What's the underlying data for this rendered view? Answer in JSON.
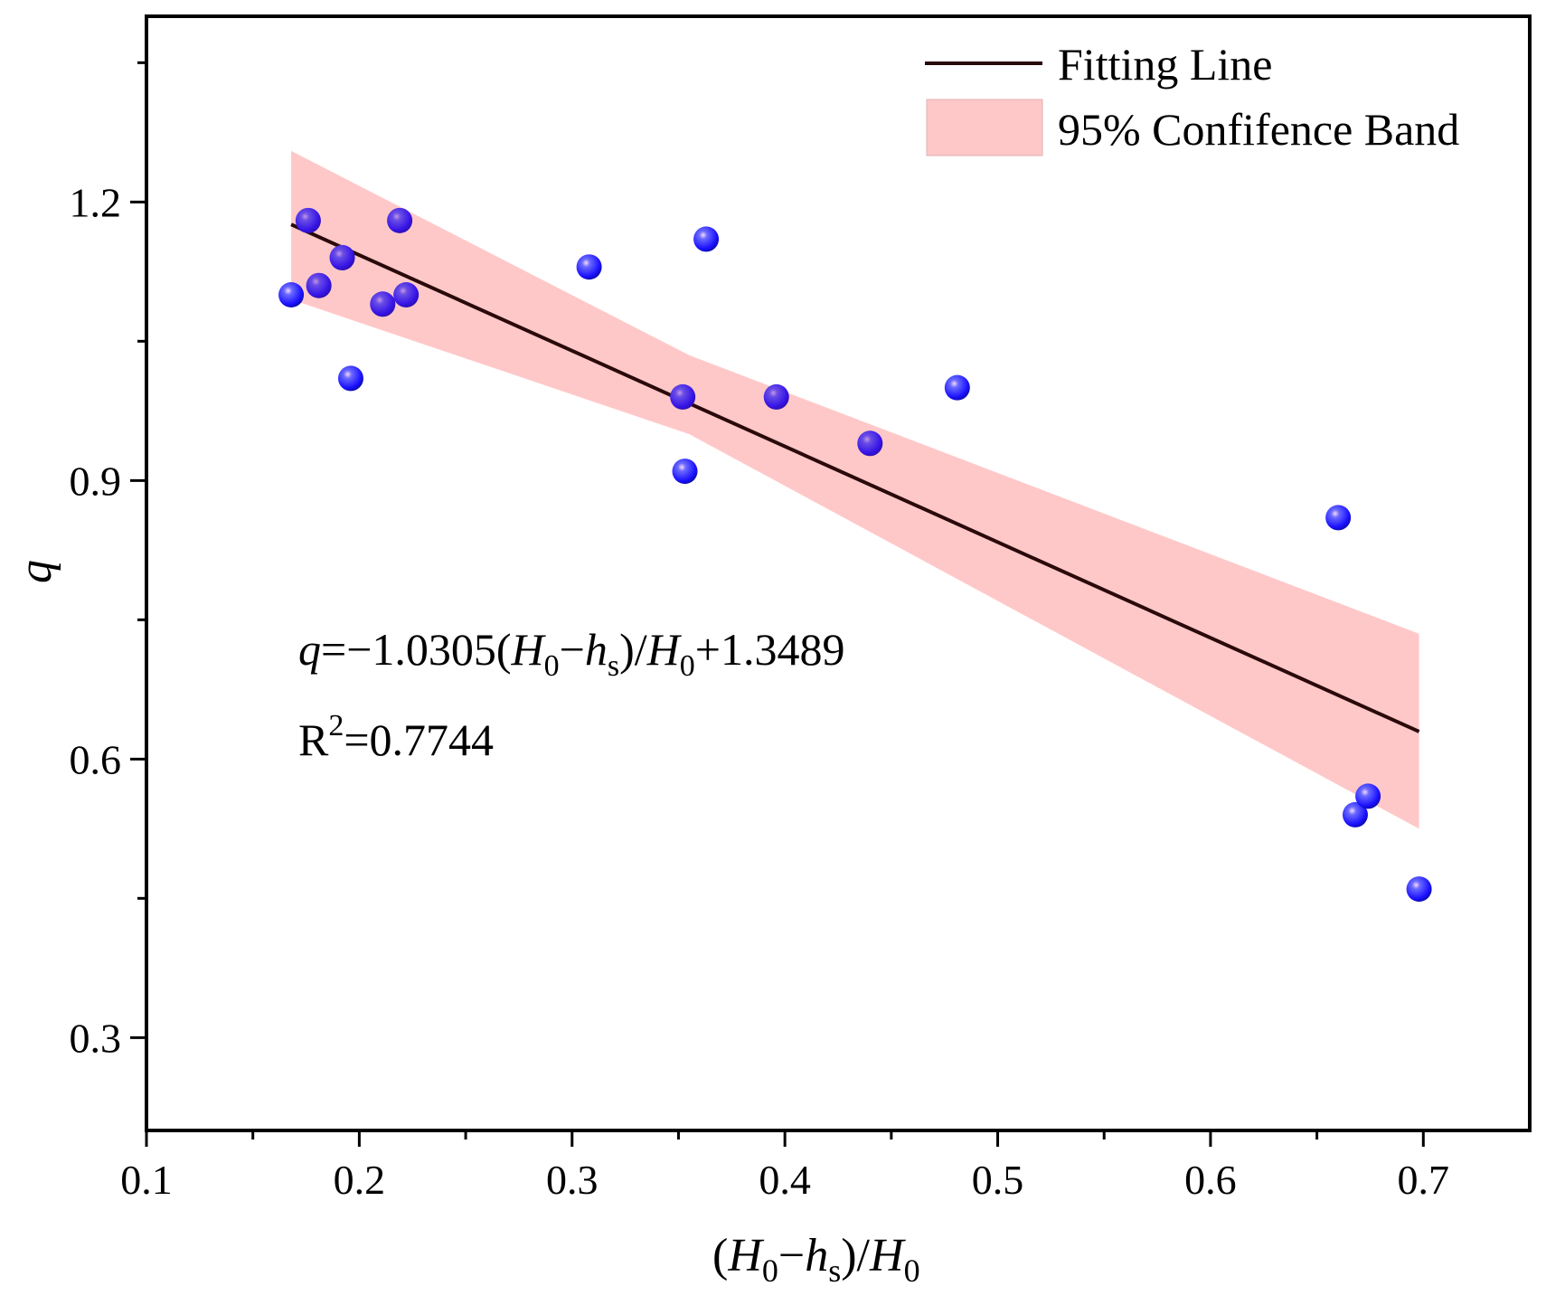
{
  "chart_data": {
    "type": "scatter",
    "xlabel": "(H0−hs)/H0",
    "ylabel": "q",
    "xlim": [
      0.1,
      0.75
    ],
    "ylim": [
      0.2,
      1.4
    ],
    "x_ticks": [
      "0.1",
      "0.2",
      "0.3",
      "0.4",
      "0.5",
      "0.6",
      "0.7"
    ],
    "y_ticks": [
      "0.3",
      "0.6",
      "0.9",
      "1.2"
    ],
    "x_tick_values": [
      0.1,
      0.2,
      0.3,
      0.4,
      0.5,
      0.6,
      0.7
    ],
    "y_tick_values": [
      0.3,
      0.6,
      0.9,
      1.2
    ],
    "x_minor_tick_values": [
      0.15,
      0.25,
      0.35,
      0.45,
      0.55,
      0.65
    ],
    "y_minor_tick_values": [
      0.45,
      0.75,
      1.05,
      1.35
    ],
    "points": [
      {
        "x": 0.168,
        "y": 1.1
      },
      {
        "x": 0.176,
        "y": 1.18
      },
      {
        "x": 0.181,
        "y": 1.11
      },
      {
        "x": 0.192,
        "y": 1.14
      },
      {
        "x": 0.196,
        "y": 1.01
      },
      {
        "x": 0.211,
        "y": 1.09
      },
      {
        "x": 0.219,
        "y": 1.18
      },
      {
        "x": 0.222,
        "y": 1.1
      },
      {
        "x": 0.308,
        "y": 1.13
      },
      {
        "x": 0.352,
        "y": 0.99
      },
      {
        "x": 0.353,
        "y": 0.91
      },
      {
        "x": 0.363,
        "y": 1.16
      },
      {
        "x": 0.396,
        "y": 0.99
      },
      {
        "x": 0.44,
        "y": 0.94
      },
      {
        "x": 0.481,
        "y": 1.0
      },
      {
        "x": 0.66,
        "y": 0.86
      },
      {
        "x": 0.668,
        "y": 0.54
      },
      {
        "x": 0.674,
        "y": 0.56
      },
      {
        "x": 0.698,
        "y": 0.46
      }
    ],
    "fit": {
      "slope": -1.0305,
      "intercept": 1.3489,
      "x_range": [
        0.168,
        0.698
      ]
    },
    "confidence_band": {
      "x": [
        0.168,
        0.355,
        0.698
      ],
      "upper": [
        1.255,
        1.035,
        0.735
      ],
      "lower": [
        1.095,
        0.95,
        0.525
      ]
    },
    "legend": {
      "position": "top-right",
      "items": [
        {
          "label": "Fitting Line",
          "kind": "line"
        },
        {
          "label": "95% Confifence Band",
          "kind": "band"
        }
      ]
    },
    "annotations": {
      "equation_lhs": "q",
      "equation_eq": "=−1.0305(",
      "equation_H0": "H",
      "equation_H0_sub": "0",
      "equation_minus": "−",
      "equation_hs": "h",
      "equation_hs_sub": "s",
      "equation_div": ")/",
      "equation_H0b": "H",
      "equation_H0b_sub": "0",
      "equation_tail": "+1.3489",
      "r2_base": "R",
      "r2_sup": "2",
      "r2_value": "=0.7744"
    },
    "axis_title_parts": {
      "x_open": "(",
      "x_H": "H",
      "x_H_sub": "0",
      "x_minus": "−",
      "x_h": "h",
      "x_h_sub": "s",
      "x_close": ")/",
      "x_H2": "H",
      "x_H2_sub": "0",
      "y": "q"
    },
    "colors": {
      "line": "#2a0a0a",
      "band": "#ffc8c8",
      "marker_core": "#1a10ff",
      "marker_dark": "#0a0a9a",
      "marker_highlight": "#f6d8ff",
      "marker_overlap": "#6a1ab8"
    }
  }
}
